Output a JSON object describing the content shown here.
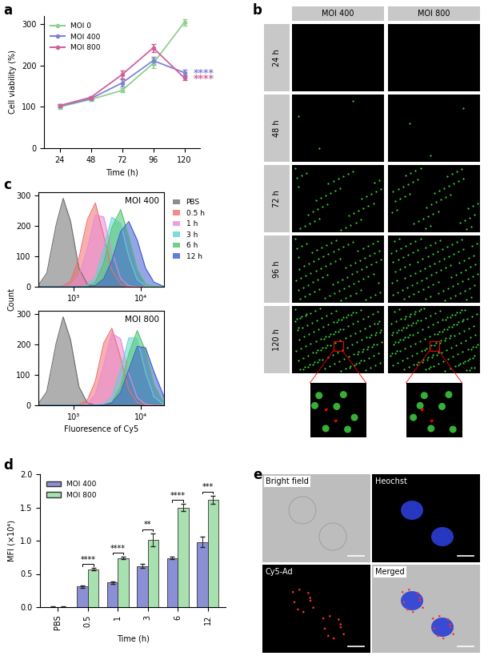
{
  "panel_labels": [
    "a",
    "b",
    "c",
    "d",
    "e"
  ],
  "chart_data": [
    {
      "panel": "a",
      "type": "line",
      "x": [
        24,
        48,
        72,
        96,
        120
      ],
      "xlim": [
        12,
        132
      ],
      "xticks": [
        24,
        48,
        72,
        96,
        120
      ],
      "ylim": [
        0,
        320
      ],
      "yticks": [
        0,
        100,
        200,
        300
      ],
      "xlabel": "Time (h)",
      "ylabel": "Cell viability (%)",
      "legend": "upper left",
      "marker": "o",
      "series": [
        {
          "name": "MOI 0",
          "color": "#8fd08f",
          "values": [
            100,
            118,
            140,
            205,
            305
          ],
          "errors": [
            5,
            4,
            5,
            12,
            8
          ]
        },
        {
          "name": "MOI 400",
          "color": "#7f83d6",
          "values": [
            102,
            120,
            158,
            212,
            183
          ],
          "errors": [
            4,
            4,
            8,
            10,
            8
          ],
          "significance": "****"
        },
        {
          "name": "MOI 800",
          "color": "#d0609c",
          "values": [
            103,
            123,
            178,
            243,
            170
          ],
          "errors": [
            4,
            4,
            10,
            10,
            6
          ],
          "significance": "****"
        }
      ]
    },
    {
      "panel": "c",
      "type": "area",
      "log": "x",
      "x": [
        300,
        400,
        550,
        700,
        900,
        1200,
        1600,
        2100,
        2800,
        3700,
        5000,
        6600,
        8800,
        11700,
        15600,
        22000
      ],
      "xlim": [
        300,
        22000
      ],
      "xticks": [
        {
          "value": 1000,
          "label": "10³"
        },
        {
          "value": 10000,
          "label": "10⁴"
        }
      ],
      "ylim": [
        0,
        310
      ],
      "yticks": [
        0,
        100,
        200,
        300
      ],
      "xlabel": "Fluoresence of Cy5",
      "ylabel": "Count",
      "legend": "upper left",
      "subplots": [
        {
          "annotation": "MOI 400",
          "series": [
            {
              "name": "PBS",
              "color": "#6e6e6e",
              "values": [
                5,
                45,
                203,
                290,
                215,
                61,
                8,
                0,
                0,
                0,
                0,
                0,
                0,
                0,
                0,
                0
              ]
            },
            {
              "name": "0.5 h",
              "color": "#f26d6d",
              "values": [
                0,
                0,
                0,
                3,
                18,
                94,
                220,
                275,
                167,
                54,
                8,
                0,
                0,
                0,
                0,
                0
              ]
            },
            {
              "name": "1 h",
              "color": "#e68ad8",
              "values": [
                0,
                0,
                0,
                0,
                4,
                34,
                124,
                235,
                229,
                114,
                26,
                3,
                0,
                0,
                0,
                0
              ]
            },
            {
              "name": "3 h",
              "color": "#5fd3d3",
              "values": [
                0,
                0,
                0,
                0,
                0,
                0,
                5,
                32,
                126,
                228,
                208,
                99,
                24,
                3,
                0,
                0
              ]
            },
            {
              "name": "6 h",
              "color": "#4cc46a",
              "values": [
                0,
                0,
                0,
                0,
                0,
                0,
                2,
                14,
                78,
                194,
                253,
                165,
                57,
                9,
                0,
                0
              ]
            },
            {
              "name": "12 h",
              "color": "#3f5bd1",
              "values": [
                0,
                0,
                0,
                0,
                0,
                0,
                0,
                4,
                26,
                86,
                181,
                214,
                153,
                61,
                15,
                1
              ]
            }
          ]
        },
        {
          "annotation": "MOI 800",
          "series": [
            {
              "name": "PBS",
              "color": "#6e6e6e",
              "values": [
                5,
                45,
                203,
                290,
                215,
                61,
                8,
                0,
                0,
                0,
                0,
                0,
                0,
                0,
                0,
                0
              ]
            },
            {
              "name": "0.5 h",
              "color": "#f26d6d",
              "values": [
                0,
                0,
                0,
                0,
                0,
                2,
                17,
                79,
                204,
                253,
                155,
                50,
                9,
                1,
                0,
                0
              ]
            },
            {
              "name": "1 h",
              "color": "#e68ad8",
              "values": [
                0,
                0,
                0,
                0,
                0,
                0,
                5,
                34,
                132,
                237,
                217,
                103,
                25,
                3,
                0,
                0
              ]
            },
            {
              "name": "3 h",
              "color": "#5fd3d3",
              "values": [
                0,
                0,
                0,
                0,
                0,
                0,
                0,
                0,
                4,
                28,
                118,
                221,
                221,
                108,
                28,
                2
              ]
            },
            {
              "name": "6 h",
              "color": "#4cc46a",
              "values": [
                0,
                0,
                0,
                0,
                0,
                0,
                0,
                0,
                1,
                10,
                61,
                169,
                245,
                178,
                68,
                8
              ]
            },
            {
              "name": "12 h",
              "color": "#3f5bd1",
              "values": [
                0,
                0,
                0,
                0,
                0,
                0,
                0,
                0,
                1,
                8,
                43,
                117,
                193,
                189,
                110,
                28
              ]
            }
          ]
        }
      ]
    },
    {
      "panel": "d",
      "type": "bar",
      "categories": [
        "PBS",
        "0.5",
        "1",
        "3",
        "6",
        "12"
      ],
      "ylim": [
        0,
        2.0
      ],
      "yticks": [
        {
          "value": 0,
          "label": "0.0"
        },
        {
          "value": 0.5,
          "label": "0.5"
        },
        {
          "value": 1.0,
          "label": "1.0"
        },
        {
          "value": 1.5,
          "label": "1.5"
        },
        {
          "value": 2.0,
          "label": "2.0"
        }
      ],
      "xlabel": "Time (h)",
      "ylabel": "MFI (×10⁴)",
      "legend": "upper left",
      "series": [
        {
          "name": "MOI 400",
          "color": "#8b8fd6",
          "values": [
            0.005,
            0.31,
            0.37,
            0.62,
            0.74,
            0.98
          ],
          "errors": [
            0.002,
            0.02,
            0.02,
            0.03,
            0.02,
            0.08
          ]
        },
        {
          "name": "MOI 800",
          "color": "#a8e0b0",
          "values": [
            0.005,
            0.57,
            0.74,
            1.01,
            1.5,
            1.62
          ],
          "errors": [
            0.002,
            0.02,
            0.02,
            0.1,
            0.05,
            0.06
          ]
        }
      ],
      "significance": [
        null,
        "****",
        "****",
        "**",
        "****",
        "***"
      ]
    }
  ],
  "micrographs": {
    "b": {
      "columns": [
        "MOI 400",
        "MOI 800"
      ],
      "rows": [
        "24 h",
        "48 h",
        "72 h",
        "96 h",
        "120 h"
      ]
    },
    "e": {
      "panels": [
        "Bright field",
        "Heochst",
        "Cy5-Ad",
        "Merged"
      ]
    }
  }
}
